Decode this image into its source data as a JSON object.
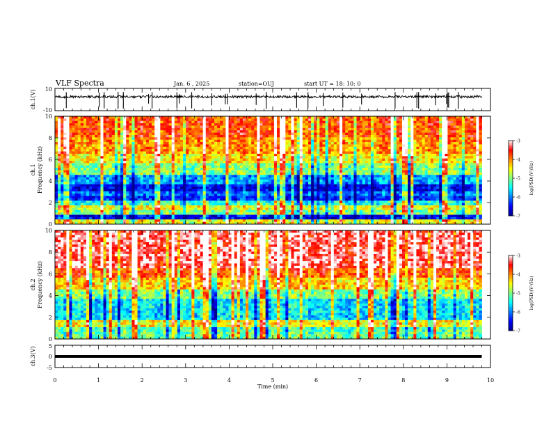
{
  "header": {
    "title": "VLF Spectra",
    "date": "Jan. 6 , 2025",
    "station": "station=OUJ",
    "start": "start UT =  18: 10: 0"
  },
  "colors": {
    "jet": [
      "#00008f",
      "#0000ff",
      "#0080ff",
      "#00ffff",
      "#80ff80",
      "#ffff00",
      "#ff8000",
      "#ff0000",
      "#ffffff"
    ]
  },
  "chart_data": [
    {
      "type": "line",
      "name": "waveform-ch1",
      "ylabel": "ch.1(V)",
      "ylim": [
        -10,
        10
      ],
      "y_tick_labels": [
        "10",
        "-10"
      ],
      "x_range_min": [
        0,
        9.8
      ],
      "baseline": 2.5,
      "spike_times": [
        0.26,
        1.02,
        1.13,
        1.45,
        1.57,
        2.15,
        2.23,
        2.8,
        2.86,
        3.14,
        3.6,
        3.91,
        3.96,
        4.62,
        4.85,
        5.55,
        5.81,
        6.16,
        6.61,
        7.04,
        7.81,
        8.31,
        8.35,
        8.74,
        8.99,
        9.02,
        9.04,
        9.26
      ]
    },
    {
      "type": "heatmap",
      "name": "spectrogram-ch1",
      "ylabel": "ch.1 Frequency (kHz)",
      "ylabel_lines": [
        "ch.1",
        "Frequency (kHz)"
      ],
      "ylim": [
        0,
        10
      ],
      "y_ticks": [
        0,
        2,
        4,
        6,
        8,
        10
      ],
      "x_range_min": [
        0,
        9.8
      ],
      "colorbar": {
        "label": "log(PSD)(V²/Hz)",
        "range": [
          -7,
          -3
        ],
        "ticks": [
          "-3",
          "-4",
          "-5",
          "-6",
          "-7"
        ]
      },
      "band_levels": [
        [
          0,
          0.5,
          -4.6
        ],
        [
          0.5,
          0.9,
          -6.6
        ],
        [
          0.9,
          1.3,
          -5.0
        ],
        [
          1.3,
          1.8,
          -4.6
        ],
        [
          1.8,
          2.2,
          -5.4
        ],
        [
          2.2,
          2.6,
          -6.4
        ],
        [
          2.6,
          3.0,
          -6.1
        ],
        [
          3.0,
          3.6,
          -6.6
        ],
        [
          3.6,
          4.6,
          -5.9
        ],
        [
          4.6,
          5.6,
          -5.0
        ],
        [
          5.6,
          6.6,
          -4.5
        ],
        [
          6.6,
          8.0,
          -4.1
        ],
        [
          8.0,
          10,
          -3.8
        ]
      ]
    },
    {
      "type": "heatmap",
      "name": "spectrogram-ch2",
      "ylabel": "ch.2 Frequency (kHz)",
      "ylabel_lines": [
        "ch.2",
        "Frequency (kHz)"
      ],
      "ylim": [
        0,
        10
      ],
      "y_ticks": [
        0,
        2,
        4,
        6,
        8,
        10
      ],
      "x_range_min": [
        0,
        9.8
      ],
      "colorbar": {
        "label": "log(PSD)(V²/Hz)",
        "range": [
          -7,
          -3
        ],
        "ticks": [
          "-3",
          "-4",
          "-5",
          "-6",
          "-7"
        ]
      },
      "band_levels": [
        [
          0,
          0.5,
          -5.1
        ],
        [
          0.5,
          1.0,
          -5.2
        ],
        [
          1.0,
          1.7,
          -4.5
        ],
        [
          1.7,
          2.6,
          -5.6
        ],
        [
          2.6,
          3.6,
          -5.6
        ],
        [
          3.6,
          4.6,
          -5.0
        ],
        [
          4.6,
          5.6,
          -4.3
        ],
        [
          5.6,
          6.6,
          -3.8
        ],
        [
          6.6,
          10,
          -3.3
        ]
      ]
    },
    {
      "type": "line",
      "name": "waveform-ch3",
      "ylabel": "ch.3(V)",
      "ylim": [
        -5,
        5
      ],
      "y_tick_labels": [
        "5",
        "0",
        "-5"
      ],
      "x_range_min": [
        0,
        9.8
      ],
      "value": 0
    }
  ],
  "x_axis": {
    "label": "Time (min)",
    "min": 0,
    "max": 10,
    "ticks": [
      "0",
      "1",
      "2",
      "3",
      "4",
      "5",
      "6",
      "7",
      "8",
      "9",
      "10"
    ]
  }
}
